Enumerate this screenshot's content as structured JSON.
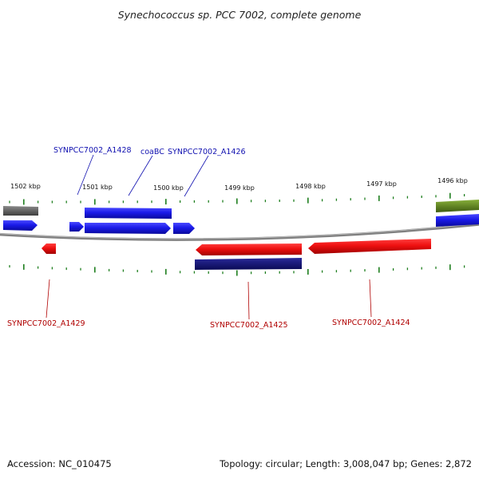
{
  "title": "Synechococcus sp. PCC 7002, complete genome",
  "scale": {
    "labels": [
      "1502 kbp",
      "1501 kbp",
      "1500 kbp",
      "1499 kbp",
      "1498 kbp",
      "1497 kbp",
      "1496 kbp"
    ]
  },
  "genes": {
    "upper": [
      {
        "label": "SYNPCC7002_A1428"
      },
      {
        "label": "coaBC"
      },
      {
        "label": "SYNPCC7002_A1426"
      }
    ],
    "lower": [
      {
        "label": "SYNPCC7002_A1429"
      },
      {
        "label": "SYNPCC7002_A1425"
      },
      {
        "label": "SYNPCC7002_A1424"
      }
    ]
  },
  "footer": {
    "accession": "Accession: NC_010475",
    "summary": "Topology: circular; Length: 3,008,047 bp; Genes: 2,872"
  },
  "colors": {
    "forward": "#1a1ae0",
    "reverse": "#e01010",
    "navy": "#10106e",
    "gray": "#606060",
    "olive": "#5a7f1a",
    "tick": "#1f7f1f",
    "backbone": "#808080",
    "label_blue": "#1010b0",
    "label_red": "#b00000"
  }
}
